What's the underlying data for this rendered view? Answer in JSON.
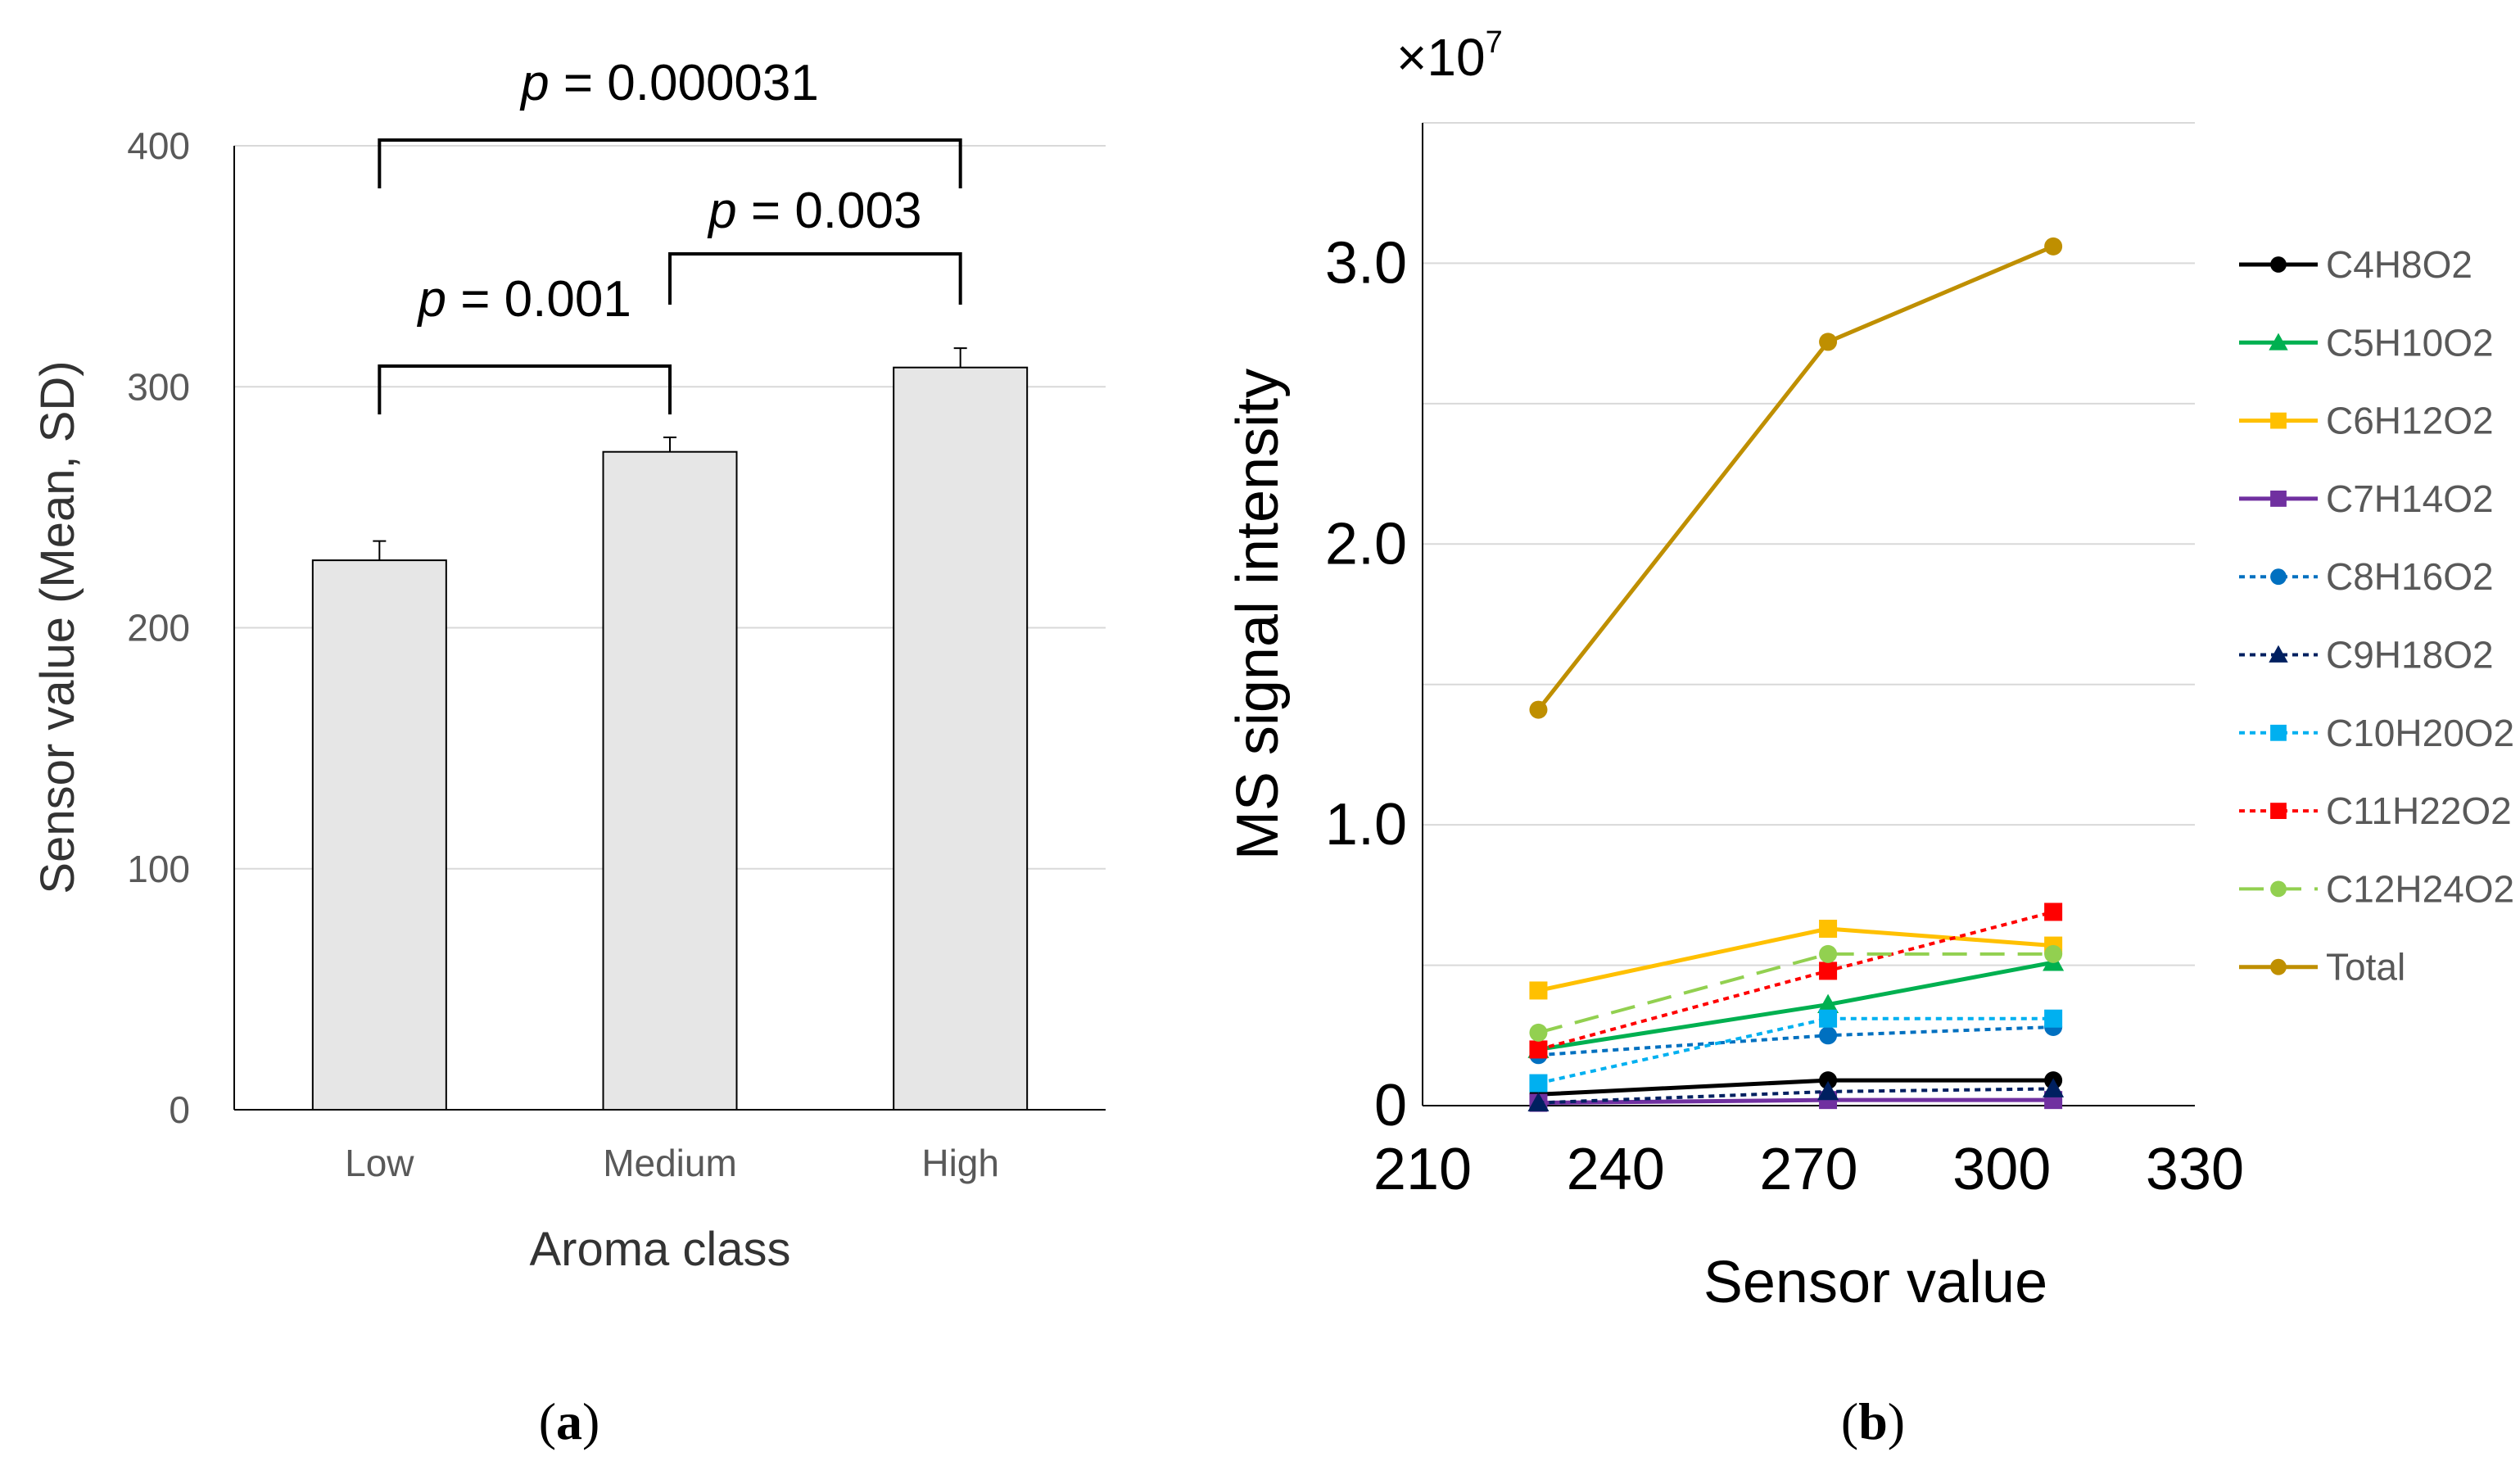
{
  "panel_a": {
    "label": "(a)",
    "chart_data": {
      "type": "bar",
      "title": "",
      "categories": [
        "Low",
        "Medium",
        "High"
      ],
      "values": [
        228,
        273,
        308
      ],
      "errors": [
        8,
        6,
        8
      ],
      "xlabel": "Aroma class",
      "ylabel": "Sensor value (Mean, SD)",
      "ylim": [
        0,
        400
      ],
      "yticks": [
        0,
        100,
        200,
        300,
        400
      ],
      "grid": true,
      "bar_color": "#e6e6e6",
      "edge_color": "#000000",
      "significance": [
        {
          "from": 0,
          "to": 1,
          "italic": "p",
          "text": " = 0.001"
        },
        {
          "from": 1,
          "to": 2,
          "italic": "p",
          "text": " = 0.003"
        },
        {
          "from": 0,
          "to": 2,
          "italic": "p",
          "text": " = 0.000031"
        }
      ]
    }
  },
  "panel_b": {
    "label": "(b)",
    "chart_data": {
      "type": "line",
      "title": "",
      "xlabel": "Sensor value",
      "ylabel": "MS signal intensity",
      "scale_label": "×10",
      "scale_exponent": "7",
      "xlim": [
        210,
        330
      ],
      "xticks": [
        210,
        240,
        270,
        300,
        330
      ],
      "ylim": [
        0,
        3.5
      ],
      "yticks": [
        0,
        1.0,
        2.0,
        3.0
      ],
      "ytick_labels": [
        "0",
        "1.0",
        "2.0",
        "3.0"
      ],
      "ygrid": [
        0.5,
        1.0,
        1.5,
        2.0,
        2.5,
        3.0,
        3.5
      ],
      "grid": true,
      "legend_position": "right",
      "x": [
        228,
        273,
        308
      ],
      "series": [
        {
          "name": "C4H8O2",
          "values": [
            0.04,
            0.09,
            0.09
          ],
          "color": "#000000",
          "marker": "circle",
          "dash": "solid"
        },
        {
          "name": "C5H10O2",
          "values": [
            0.2,
            0.36,
            0.51
          ],
          "color": "#00b050",
          "marker": "triangle",
          "dash": "solid"
        },
        {
          "name": "C6H12O2",
          "values": [
            0.41,
            0.63,
            0.57
          ],
          "color": "#ffc000",
          "marker": "square",
          "dash": "solid"
        },
        {
          "name": "C7H14O2",
          "values": [
            0.01,
            0.02,
            0.02
          ],
          "color": "#7030a0",
          "marker": "square",
          "dash": "solid"
        },
        {
          "name": "C8H16O2",
          "values": [
            0.18,
            0.25,
            0.28
          ],
          "color": "#0070c0",
          "marker": "circle",
          "dash": "dotted"
        },
        {
          "name": "C9H18O2",
          "values": [
            0.01,
            0.05,
            0.06
          ],
          "color": "#002060",
          "marker": "triangle",
          "dash": "dotted"
        },
        {
          "name": "C10H20O2",
          "values": [
            0.08,
            0.31,
            0.31
          ],
          "color": "#00b0f0",
          "marker": "square",
          "dash": "dotted"
        },
        {
          "name": "C11H22O2",
          "values": [
            0.2,
            0.48,
            0.69
          ],
          "color": "#ff0000",
          "marker": "square",
          "dash": "dotted"
        },
        {
          "name": "C12H24O2",
          "values": [
            0.26,
            0.54,
            0.54
          ],
          "color": "#92d050",
          "marker": "circle",
          "dash": "dashed"
        },
        {
          "name": "Total",
          "values": [
            1.41,
            2.72,
            3.06
          ],
          "color": "#bf8f00",
          "marker": "circle",
          "dash": "solid"
        }
      ]
    }
  }
}
